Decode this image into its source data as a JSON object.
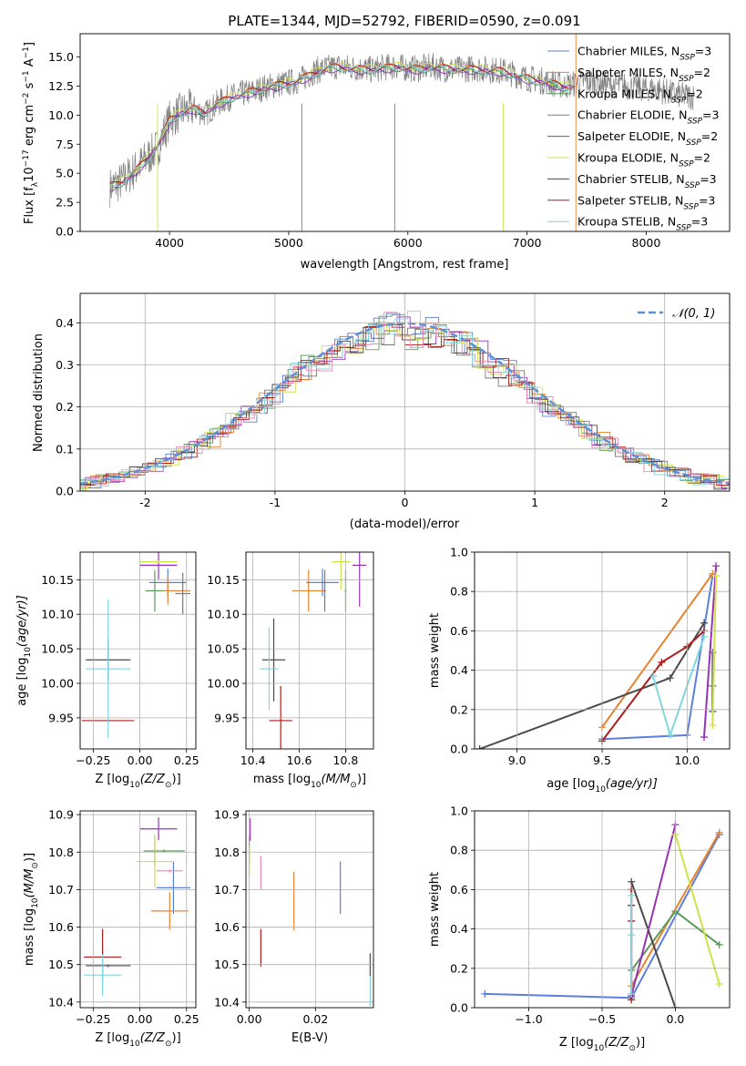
{
  "figure_title": "PLATE=1344, MJD=52792, FIBERID=0590, z=0.091",
  "legend_spectrum": [
    {
      "name": "Chabrier MILES, N",
      "sub": "SSP",
      "tail": "=3",
      "color": "#5b7fdb"
    },
    {
      "name": "Salpeter MILES, N",
      "sub": "SSP",
      "tail": "=2",
      "color": "#e8822b"
    },
    {
      "name": "Kroupa MILES, N",
      "sub": "SSP",
      "tail": "=2",
      "color": "#5a9a5a"
    },
    {
      "name": "Chabrier ELODIE, N",
      "sub": "SSP",
      "tail": "=3",
      "color": "#7a7a7a"
    },
    {
      "name": "Salpeter ELODIE, N",
      "sub": "SSP",
      "tail": "=2",
      "color": "#9a30b8"
    },
    {
      "name": "Kroupa ELODIE, N",
      "sub": "SSP",
      "tail": "=2",
      "color": "#cfe24a"
    },
    {
      "name": "Chabrier STELIB, N",
      "sub": "SSP",
      "tail": "=3",
      "color": "#4a4a4a"
    },
    {
      "name": "Salpeter STELIB, N",
      "sub": "SSP",
      "tail": "=3",
      "color": "#b01c1c"
    },
    {
      "name": "Kroupa STELIB, N",
      "sub": "SSP",
      "tail": "=3",
      "color": "#7fd8e0"
    }
  ],
  "legend_hist": {
    "label": "𝒩(0, 1)",
    "color": "#5b8fd9"
  },
  "chart_data": [
    {
      "id": "spectrum",
      "type": "line",
      "title": "PLATE=1344, MJD=52792, FIBERID=0590, z=0.091",
      "xlabel": "wavelength [Angstrom, rest frame]",
      "ylabel_parts": [
        "Flux [f",
        "λ",
        "10",
        "−17",
        " erg cm",
        "−2",
        " s",
        "−1",
        " A",
        "−1",
        "]"
      ],
      "xlim": [
        3250,
        8700
      ],
      "ylim": [
        0,
        17
      ],
      "xticks": [
        4000,
        5000,
        6000,
        7000,
        8000
      ],
      "yticks": [
        0.0,
        2.5,
        5.0,
        7.5,
        10.0,
        12.5,
        15.0
      ],
      "grid": false,
      "legend": "upper right",
      "data_curve": {
        "x": [
          3500,
          3600,
          3700,
          3800,
          3900,
          4000,
          4100,
          4200,
          4300,
          4400,
          4500,
          4600,
          4700,
          4800,
          4900,
          5000,
          5100,
          5200,
          5300,
          5400,
          5500,
          5600,
          5700,
          5800,
          5900,
          6000,
          6100,
          6200,
          6300,
          6400,
          6500,
          6600,
          6700,
          6800,
          6900,
          7000,
          7100,
          7200,
          7300,
          7400,
          7500,
          7600,
          7700,
          7800,
          7900,
          8000,
          8100,
          8200,
          8300,
          8400
        ],
        "y": [
          3.8,
          4.3,
          5.2,
          6.2,
          7.2,
          9.6,
          10.3,
          10.6,
          10.1,
          11.0,
          11.5,
          11.8,
          12.0,
          12.4,
          12.6,
          12.8,
          13.0,
          13.7,
          14.0,
          14.2,
          14.1,
          14.0,
          13.9,
          14.1,
          14.2,
          14.0,
          14.0,
          14.2,
          14.0,
          13.9,
          14.0,
          14.0,
          13.9,
          13.8,
          13.5,
          13.2,
          13.0,
          12.8,
          12.5,
          12.7,
          12.9,
          12.8,
          12.6,
          12.5,
          12.4,
          12.3,
          12.2,
          11.9,
          11.7,
          11.6
        ]
      },
      "model_curve": {
        "x": [
          3500,
          3600,
          3700,
          3800,
          3900,
          4000,
          4100,
          4200,
          4300,
          4400,
          4500,
          4600,
          4700,
          4800,
          4900,
          5000,
          5100,
          5200,
          5300,
          5400,
          5500,
          5600,
          5700,
          5800,
          5900,
          6000,
          6100,
          6200,
          6300,
          6400,
          6500,
          6600,
          6700,
          6800,
          6900,
          7000,
          7100,
          7200,
          7300,
          7400
        ],
        "y": [
          3.8,
          4.2,
          5.0,
          6.0,
          7.4,
          9.5,
          10.2,
          10.5,
          10.2,
          10.9,
          11.4,
          11.7,
          12.0,
          12.3,
          12.5,
          12.7,
          13.0,
          13.5,
          13.9,
          14.1,
          14.0,
          13.9,
          13.9,
          14.0,
          14.1,
          14.0,
          13.9,
          14.1,
          14.0,
          13.9,
          13.9,
          13.9,
          13.8,
          13.7,
          13.4,
          13.1,
          12.9,
          12.7,
          12.4,
          12.5
        ]
      }
    },
    {
      "id": "residuals",
      "type": "bar",
      "xlabel": "(data-model)/error",
      "ylabel": "Normed distribution",
      "xlim": [
        -2.5,
        2.5
      ],
      "ylim": [
        0,
        0.47
      ],
      "xticks": [
        -2,
        -1,
        0,
        1,
        2
      ],
      "yticks": [
        0.0,
        0.1,
        0.2,
        0.3,
        0.4
      ],
      "grid": true,
      "legend": "upper right",
      "gaussian": {
        "mu": 0,
        "sigma": 1
      }
    },
    {
      "id": "age-Z",
      "type": "scatter",
      "xlabel": "Z [log",
      "xlabel_sub": "10",
      "xlabel_math": "(Z/Z",
      "xlabel_tail": ")]",
      "ylabel": "age  [log",
      "ylabel_sub": "10",
      "ylabel_math": "(age/yr)]",
      "xlim": [
        -0.32,
        0.3
      ],
      "ylim": [
        9.905,
        10.19
      ],
      "xticks": [
        -0.25,
        0.0,
        0.25
      ],
      "xtick_labels": [
        "−0.25",
        "0.00",
        "0.25"
      ],
      "yticks": [
        9.95,
        10.0,
        10.05,
        10.1,
        10.15
      ],
      "ytick_labels": [
        "9.95",
        "10.00",
        "10.05",
        "10.10",
        "10.15"
      ],
      "grid": true,
      "points": [
        {
          "x": 0.15,
          "y": 10.146,
          "xerr": 0.1,
          "yerr": 0.02,
          "color": "#5b7fdb"
        },
        {
          "x": 0.15,
          "y": 10.134,
          "xerr": 0.12,
          "yerr": 0.02,
          "color": "#e8822b"
        },
        {
          "x": 0.08,
          "y": 10.134,
          "xerr": 0.05,
          "yerr": 0.03,
          "color": "#5a9a5a"
        },
        {
          "x": 0.23,
          "y": 10.13,
          "xerr": 0.04,
          "yerr": 0.03,
          "color": "#7a7a7a"
        },
        {
          "x": 0.1,
          "y": 10.171,
          "xerr": 0.1,
          "yerr": 0.02,
          "color": "#9a30b8"
        },
        {
          "x": 0.1,
          "y": 10.176,
          "xerr": 0.1,
          "yerr": 0.002,
          "color": "#cfe24a"
        },
        {
          "x": -0.17,
          "y": 10.034,
          "xerr": 0.12,
          "yerr": 0.03,
          "color": "#4a4a4a"
        },
        {
          "x": -0.17,
          "y": 9.946,
          "xerr": 0.14,
          "yerr": 0.002,
          "color": "#b01c1c"
        },
        {
          "x": -0.17,
          "y": 10.021,
          "xerr": 0.12,
          "yerr": 0.1,
          "color": "#7fd8e0"
        }
      ]
    },
    {
      "id": "age-mass",
      "type": "scatter",
      "xlabel": "mass [log",
      "xlabel_sub": "10",
      "xlabel_math": "(M/M",
      "xlabel_tail": ")]",
      "xlim": [
        10.37,
        10.92
      ],
      "ylim": [
        9.905,
        10.19
      ],
      "xticks": [
        10.4,
        10.6,
        10.8
      ],
      "xtick_labels": [
        "10.4",
        "10.6",
        "10.8"
      ],
      "yticks": [
        9.95,
        10.0,
        10.05,
        10.1,
        10.15
      ],
      "ytick_labels": [
        "9.95",
        "10.00",
        "10.05",
        "10.10",
        "10.15"
      ],
      "grid": true,
      "points": [
        {
          "x": 10.7,
          "y": 10.146,
          "xerr": 0.07,
          "yerr": 0.02,
          "color": "#5b7fdb"
        },
        {
          "x": 10.64,
          "y": 10.134,
          "xerr": 0.07,
          "yerr": 0.03,
          "color": "#e8822b"
        },
        {
          "x": 10.8,
          "y": 10.134,
          "xerr": 0.004,
          "yerr": 0.03,
          "color": "#5a9a5a"
        },
        {
          "x": 10.71,
          "y": 10.134,
          "xerr": 0.004,
          "yerr": 0.03,
          "color": "#7a7a7a"
        },
        {
          "x": 10.86,
          "y": 10.171,
          "xerr": 0.03,
          "yerr": 0.06,
          "color": "#9a30b8"
        },
        {
          "x": 10.78,
          "y": 10.176,
          "xerr": 0.04,
          "yerr": 0.04,
          "color": "#cfe24a"
        },
        {
          "x": 10.49,
          "y": 10.034,
          "xerr": 0.05,
          "yerr": 0.06,
          "color": "#4a4a4a"
        },
        {
          "x": 10.52,
          "y": 9.946,
          "xerr": 0.05,
          "yerr": 0.05,
          "color": "#b01c1c"
        },
        {
          "x": 10.47,
          "y": 10.021,
          "xerr": 0.04,
          "yerr": 0.06,
          "color": "#7fd8e0"
        }
      ]
    },
    {
      "id": "weight-age",
      "type": "line",
      "xlabel": "age  [log",
      "xlabel_sub": "10",
      "xlabel_math": "(age/yr)]",
      "ylabel": "mass weight",
      "xlim": [
        8.75,
        10.25
      ],
      "ylim": [
        0.0,
        1.0
      ],
      "xticks": [
        9.0,
        9.5,
        10.0
      ],
      "xtick_labels": [
        "9.0",
        "9.5",
        "10.0"
      ],
      "yticks": [
        0.0,
        0.2,
        0.4,
        0.6,
        0.8,
        1.0
      ],
      "ytick_labels": [
        "0.0",
        "0.2",
        "0.4",
        "0.6",
        "0.8",
        "1.0"
      ],
      "grid": true,
      "series": [
        {
          "color": "#5b7fdb",
          "x": [
            9.5,
            10.0,
            10.15
          ],
          "y": [
            0.05,
            0.07,
            0.88
          ]
        },
        {
          "color": "#e8822b",
          "x": [
            9.5,
            10.15
          ],
          "y": [
            0.11,
            0.89
          ]
        },
        {
          "color": "#5a9a5a",
          "x": [
            10.15,
            10.15,
            10.15
          ],
          "y": [
            0.49,
            0.32,
            0.19
          ]
        },
        {
          "color": "#7a7a7a",
          "x": [
            10.15,
            10.15,
            10.15
          ],
          "y": [
            0.49,
            0.32,
            0.19
          ]
        },
        {
          "color": "#9a30b8",
          "x": [
            10.1,
            10.17
          ],
          "y": [
            0.06,
            0.93
          ]
        },
        {
          "color": "#cfe24a",
          "x": [
            10.15,
            10.17
          ],
          "y": [
            0.12,
            0.88
          ]
        },
        {
          "color": "#4a4a4a",
          "x": [
            8.78,
            9.9,
            10.1
          ],
          "y": [
            0.0,
            0.36,
            0.64
          ]
        },
        {
          "color": "#b01c1c",
          "x": [
            9.5,
            9.85,
            10.0,
            10.1
          ],
          "y": [
            0.04,
            0.44,
            0.52,
            0.6
          ]
        },
        {
          "color": "#7fd8e0",
          "x": [
            9.8,
            9.9,
            10.1
          ],
          "y": [
            0.37,
            0.07,
            0.57
          ]
        }
      ]
    },
    {
      "id": "mass-Z",
      "type": "scatter",
      "xlabel": "Z [log",
      "xlabel_sub": "10",
      "xlabel_math": "(Z/Z",
      "xlabel_tail": ")]",
      "ylabel": "mass [log",
      "ylabel_sub": "10",
      "ylabel_math": "(M/M",
      "ylabel_tail": ")]",
      "xlim": [
        -0.32,
        0.3
      ],
      "ylim": [
        10.385,
        10.91
      ],
      "xticks": [
        -0.25,
        0.0,
        0.25
      ],
      "xtick_labels": [
        "−0.25",
        "0.00",
        "0.25"
      ],
      "yticks": [
        10.4,
        10.5,
        10.6,
        10.7,
        10.8,
        10.9
      ],
      "ytick_labels": [
        "10.4",
        "10.5",
        "10.6",
        "10.7",
        "10.8",
        "10.9"
      ],
      "grid": true,
      "points": [
        {
          "x": 0.18,
          "y": 10.705,
          "xerr": 0.09,
          "yerr": 0.07,
          "color": "#5b7fdb"
        },
        {
          "x": 0.16,
          "y": 10.643,
          "xerr": 0.1,
          "yerr": 0.05,
          "color": "#e8822b"
        },
        {
          "x": 0.13,
          "y": 10.803,
          "xerr": 0.11,
          "yerr": 0.004,
          "color": "#5a9a5a"
        },
        {
          "x": 0.08,
          "y": 10.805,
          "xerr": 0.004,
          "yerr": 0.04,
          "color": "#7a7a7a"
        },
        {
          "x": 0.1,
          "y": 10.862,
          "xerr": 0.1,
          "yerr": 0.03,
          "color": "#9a30b8"
        },
        {
          "x": 0.08,
          "y": 10.775,
          "xerr": 0.1,
          "yerr": 0.07,
          "color": "#cfe24a"
        },
        {
          "x": -0.17,
          "y": 10.497,
          "xerr": 0.12,
          "yerr": 0.004,
          "color": "#4a4a4a"
        },
        {
          "x": -0.2,
          "y": 10.52,
          "xerr": 0.1,
          "yerr": 0.075,
          "color": "#b01c1c"
        },
        {
          "x": -0.2,
          "y": 10.472,
          "xerr": 0.1,
          "yerr": 0.055,
          "color": "#7fd8e0"
        },
        {
          "x": 0.16,
          "y": 10.75,
          "xerr": 0.07,
          "yerr": 0.004,
          "color": "#e889b5"
        }
      ]
    },
    {
      "id": "mass-EBV",
      "type": "scatter",
      "xlabel": "E(B-V)",
      "xlim": [
        -0.001,
        0.0375
      ],
      "ylim": [
        10.385,
        10.91
      ],
      "xticks": [
        0.0,
        0.02
      ],
      "xtick_labels": [
        "0.00",
        "0.02"
      ],
      "yticks": [
        10.4,
        10.5,
        10.6,
        10.7,
        10.8,
        10.9
      ],
      "ytick_labels": [
        "10.4",
        "10.5",
        "10.6",
        "10.7",
        "10.8",
        "10.9"
      ],
      "grid": true,
      "points": [
        {
          "x": 0.0275,
          "y": 10.705,
          "xerr": 0,
          "yerr": 0.07,
          "color": "#5b7fdb"
        },
        {
          "x": 0.0135,
          "y": 10.67,
          "xerr": 0,
          "yerr": 0.078,
          "color": "#e8822b"
        },
        {
          "x": 0.0,
          "y": 10.805,
          "xerr": 0,
          "yerr": 0.04,
          "color": "#5a9a5a"
        },
        {
          "x": 0.0365,
          "y": 10.5,
          "xerr": 0,
          "yerr": 0.03,
          "color": "#4a4a4a"
        },
        {
          "x": 0.0003,
          "y": 10.86,
          "xerr": 0,
          "yerr": 0.03,
          "color": "#9a30b8"
        },
        {
          "x": 0.0,
          "y": 10.775,
          "xerr": 0,
          "yerr": 0.04,
          "color": "#cfe24a"
        },
        {
          "x": 0.0035,
          "y": 10.545,
          "xerr": 0,
          "yerr": 0.05,
          "color": "#b01c1c"
        },
        {
          "x": 0.0365,
          "y": 10.43,
          "xerr": 0,
          "yerr": 0.04,
          "color": "#7fd8e0"
        },
        {
          "x": 0.0035,
          "y": 10.745,
          "xerr": 0,
          "yerr": 0.045,
          "color": "#e889b5"
        }
      ]
    },
    {
      "id": "weight-Z",
      "type": "line",
      "xlabel": "Z [log",
      "xlabel_sub": "10",
      "xlabel_math": "(Z/Z",
      "xlabel_tail": ")]",
      "ylabel": "mass weight",
      "xlim": [
        -1.37,
        0.37
      ],
      "ylim": [
        0.0,
        1.0
      ],
      "xticks": [
        -1.0,
        -0.5,
        0.0
      ],
      "xtick_labels": [
        "−1.0",
        "−0.5",
        "0.0"
      ],
      "yticks": [
        0.0,
        0.2,
        0.4,
        0.6,
        0.8,
        1.0
      ],
      "ytick_labels": [
        "0.0",
        "0.2",
        "0.4",
        "0.6",
        "0.8",
        "1.0"
      ],
      "grid": true,
      "series": [
        {
          "color": "#5b7fdb",
          "x": [
            -1.3,
            -0.3,
            0.3
          ],
          "y": [
            0.07,
            0.05,
            0.88
          ]
        },
        {
          "color": "#e8822b",
          "x": [
            -0.3,
            0.3
          ],
          "y": [
            0.11,
            0.89
          ]
        },
        {
          "color": "#5a9a5a",
          "x": [
            -0.3,
            0.0,
            0.3
          ],
          "y": [
            0.19,
            0.49,
            0.32
          ]
        },
        {
          "color": "#9a30b8",
          "x": [
            -0.3,
            0.0
          ],
          "y": [
            0.06,
            0.93
          ]
        },
        {
          "color": "#cfe24a",
          "x": [
            0.0,
            0.3
          ],
          "y": [
            0.88,
            0.12
          ]
        },
        {
          "color": "#4a4a4a",
          "x": [
            -0.3,
            0.0
          ],
          "y": [
            0.64,
            0.0
          ]
        },
        {
          "color": "#b01c1c",
          "x": [
            -0.3,
            -0.3,
            -0.3,
            -0.3
          ],
          "y": [
            0.6,
            0.52,
            0.44,
            0.04
          ]
        },
        {
          "color": "#7fd8e0",
          "x": [
            -0.3,
            -0.3,
            -0.3
          ],
          "y": [
            0.57,
            0.37,
            0.07
          ]
        }
      ]
    }
  ]
}
